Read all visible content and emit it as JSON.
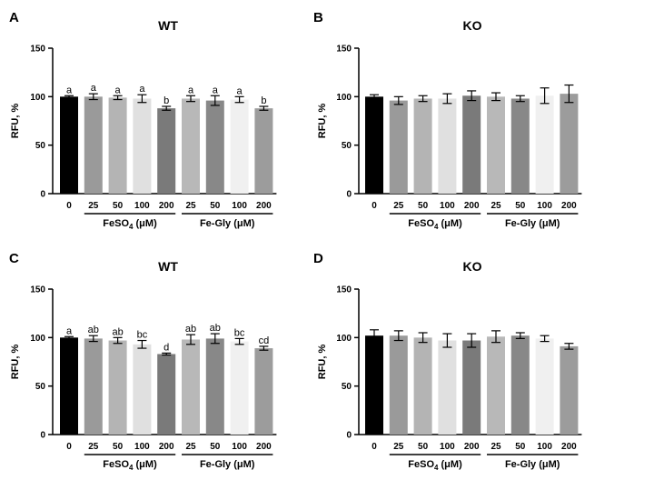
{
  "chart_data": [
    {
      "type": "bar",
      "panel": "A",
      "title": "WT",
      "ylabel": "RFU, %",
      "ylim": [
        0,
        150
      ],
      "yticks": [
        0,
        50,
        100,
        150
      ],
      "categories": [
        "0",
        "25",
        "50",
        "100",
        "200",
        "25",
        "50",
        "100",
        "200"
      ],
      "values": [
        100,
        100,
        99,
        98,
        88,
        98,
        96,
        97,
        88
      ],
      "errors": [
        1,
        3,
        2,
        4,
        2,
        3,
        5,
        3,
        2
      ],
      "significance": [
        "a",
        "a",
        "a",
        "a",
        "b",
        "a",
        "a",
        "a",
        "b"
      ],
      "bar_colors": [
        "#000000",
        "#9a9a9a",
        "#b4b4b4",
        "#e0e0e0",
        "#7a7a7a",
        "#b8b8b8",
        "#888888",
        "#f0f0f0",
        "#9c9c9c"
      ],
      "groups": [
        {
          "label_main": "FeSO",
          "label_sub": "4",
          "label_unit": " (μM)",
          "start": 1,
          "end": 4
        },
        {
          "label_main": "Fe-Gly",
          "label_sub": "",
          "label_unit": " (μM)",
          "start": 5,
          "end": 8
        }
      ]
    },
    {
      "type": "bar",
      "panel": "B",
      "title": "KO",
      "ylabel": "RFU, %",
      "ylim": [
        0,
        150
      ],
      "yticks": [
        0,
        50,
        100,
        150
      ],
      "categories": [
        "0",
        "25",
        "50",
        "100",
        "200",
        "25",
        "50",
        "100",
        "200"
      ],
      "values": [
        100,
        96,
        98,
        98,
        101,
        100,
        98,
        101,
        103
      ],
      "errors": [
        2,
        4,
        3,
        5,
        5,
        4,
        3,
        8,
        9
      ],
      "significance": [
        "",
        "",
        "",
        "",
        "",
        "",
        "",
        "",
        ""
      ],
      "bar_colors": [
        "#000000",
        "#9a9a9a",
        "#b4b4b4",
        "#e0e0e0",
        "#7a7a7a",
        "#b8b8b8",
        "#888888",
        "#f0f0f0",
        "#9c9c9c"
      ],
      "groups": [
        {
          "label_main": "FeSO",
          "label_sub": "4",
          "label_unit": " (μM)",
          "start": 1,
          "end": 4
        },
        {
          "label_main": "Fe-Gly",
          "label_sub": "",
          "label_unit": " (μM)",
          "start": 5,
          "end": 8
        }
      ]
    },
    {
      "type": "bar",
      "panel": "C",
      "title": "WT",
      "ylabel": "RFU, %",
      "ylim": [
        0,
        150
      ],
      "yticks": [
        0,
        50,
        100,
        150
      ],
      "categories": [
        "0",
        "25",
        "50",
        "100",
        "200",
        "25",
        "50",
        "100",
        "200"
      ],
      "values": [
        100,
        99,
        97,
        93,
        83,
        98,
        99,
        96,
        89
      ],
      "errors": [
        1,
        3,
        3,
        4,
        1,
        5,
        5,
        3,
        2
      ],
      "significance": [
        "a",
        "ab",
        "ab",
        "bc",
        "d",
        "ab",
        "ab",
        "bc",
        "cd"
      ],
      "bar_colors": [
        "#000000",
        "#9a9a9a",
        "#b4b4b4",
        "#e0e0e0",
        "#7a7a7a",
        "#b8b8b8",
        "#888888",
        "#f0f0f0",
        "#9c9c9c"
      ],
      "groups": [
        {
          "label_main": "FeSO",
          "label_sub": "4",
          "label_unit": " (μM)",
          "start": 1,
          "end": 4
        },
        {
          "label_main": "Fe-Gly",
          "label_sub": "",
          "label_unit": " (μM)",
          "start": 5,
          "end": 8
        }
      ]
    },
    {
      "type": "bar",
      "panel": "D",
      "title": "KO",
      "ylabel": "RFU, %",
      "ylim": [
        0,
        150
      ],
      "yticks": [
        0,
        50,
        100,
        150
      ],
      "categories": [
        "0",
        "25",
        "50",
        "100",
        "200",
        "25",
        "50",
        "100",
        "200"
      ],
      "values": [
        102,
        102,
        100,
        97,
        97,
        101,
        102,
        99,
        91
      ],
      "errors": [
        6,
        5,
        5,
        7,
        7,
        6,
        3,
        3,
        3
      ],
      "significance": [
        "",
        "",
        "",
        "",
        "",
        "",
        "",
        "",
        ""
      ],
      "bar_colors": [
        "#000000",
        "#9a9a9a",
        "#b4b4b4",
        "#e0e0e0",
        "#7a7a7a",
        "#b8b8b8",
        "#888888",
        "#f0f0f0",
        "#9c9c9c"
      ],
      "groups": [
        {
          "label_main": "FeSO",
          "label_sub": "4",
          "label_unit": " (μM)",
          "start": 1,
          "end": 4
        },
        {
          "label_main": "Fe-Gly",
          "label_sub": "",
          "label_unit": " (μM)",
          "start": 5,
          "end": 8
        }
      ]
    }
  ]
}
